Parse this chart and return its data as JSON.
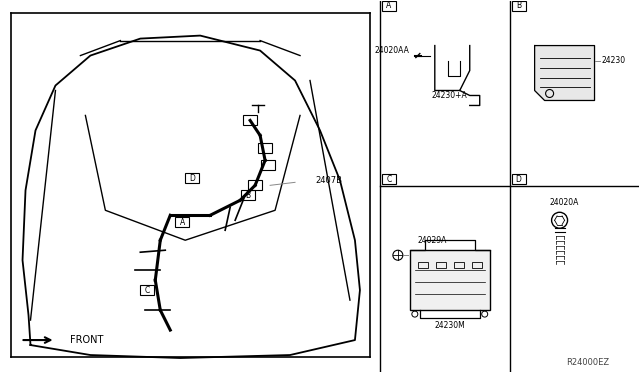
{
  "bg_color": "#ffffff",
  "line_color": "#000000",
  "gray_line": "#888888",
  "light_gray": "#cccccc",
  "divider_color": "#000000",
  "labels": {
    "front_arrow": "FRONT",
    "part_2407B": "2407B",
    "part_A_label": "A",
    "part_B_label": "B",
    "part_C_label": "C",
    "part_D_label": "D",
    "part_24020AA": "24020AA",
    "part_24230A": "24230+A",
    "part_24230": "24230",
    "part_24029A": "24029A",
    "part_24230M": "24230M",
    "part_24020A": "24020A",
    "ref_code": "R24000EZ",
    "box_A": "A",
    "box_B": "B",
    "box_C": "C",
    "box_D": "D",
    "connector_A": "A",
    "connector_B": "B",
    "connector_C": "C",
    "connector_D": "D"
  },
  "figsize": [
    6.4,
    3.72
  ],
  "dpi": 100
}
